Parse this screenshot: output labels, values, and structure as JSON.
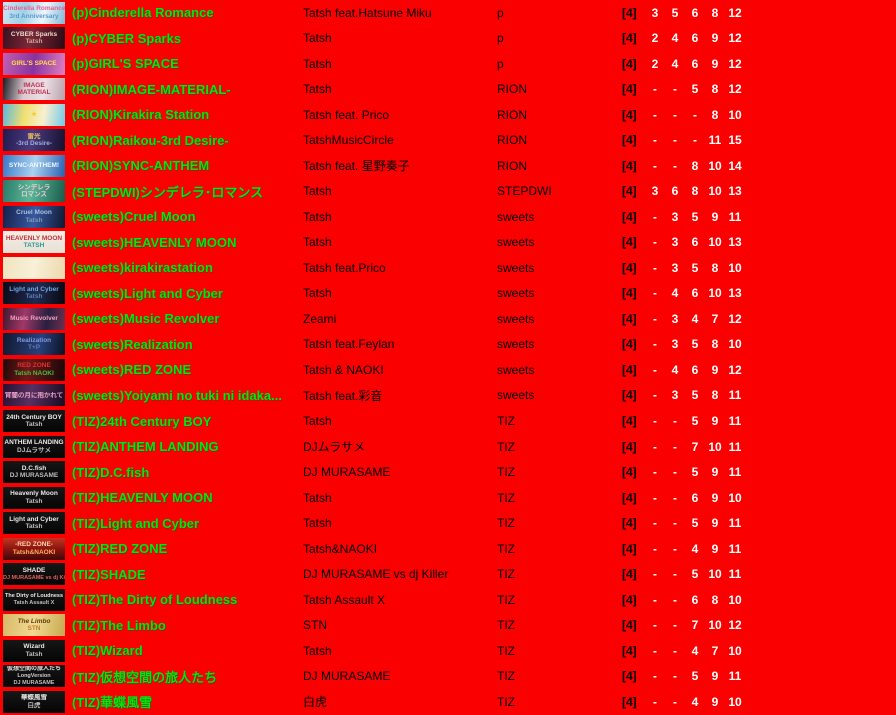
{
  "style": {
    "background": "#fa0000",
    "title_color": "#0de00d",
    "title_shadow": "#0a5a0a",
    "artist_color": "#000000",
    "category_color": "#000000",
    "diff_prefix_color": "#000000",
    "diff_value_color": "#ffffff"
  },
  "rows": [
    {
      "title": "(p)Cinderella Romance",
      "artist": "Tatsh feat.Hatsune Miku",
      "category": "p",
      "diff_prefix": "[4]",
      "difficulties": [
        "3",
        "5",
        "6",
        "8",
        "12"
      ],
      "thumb": {
        "bg": "linear-gradient(105deg,#cfe6f2 0%,#9fd0e8 35%,#eef6fb 65%,#7fb8d8 100%)",
        "lines": [
          {
            "t": "Cinderella Romance",
            "c": "#e0608e"
          },
          {
            "t": "3rd Anniversary",
            "c": "#5a9ac8"
          }
        ]
      }
    },
    {
      "title": "(p)CYBER Sparks",
      "artist": "Tatsh",
      "category": "p",
      "diff_prefix": "[4]",
      "difficulties": [
        "2",
        "4",
        "6",
        "9",
        "12"
      ],
      "thumb": {
        "bg": "linear-gradient(100deg,#3a1020,#7c2838 45%,#2a0a14)",
        "lines": [
          {
            "t": "CYBER Sparks",
            "c": "#e8d8c8"
          },
          {
            "t": "Tatsh",
            "c": "#c8a898"
          }
        ]
      }
    },
    {
      "title": "(p)GIRL'S SPACE",
      "artist": "Tatsh",
      "category": "p",
      "diff_prefix": "[4]",
      "difficulties": [
        "2",
        "4",
        "6",
        "9",
        "12"
      ],
      "thumb": {
        "bg": "linear-gradient(100deg,#c060b0,#8832a2 50%,#e080c0)",
        "lines": [
          {
            "t": "GIRL'S SPACE",
            "c": "#ffe040"
          }
        ]
      }
    },
    {
      "title": "(RION)IMAGE-MATERIAL-",
      "artist": "Tatsh",
      "category": "RION",
      "diff_prefix": "[4]",
      "difficulties": [
        "-",
        "-",
        "5",
        "8",
        "12"
      ],
      "thumb": {
        "bg": "linear-gradient(100deg,#1a1a22 0%,#d8c8d0 35%,#ece0e6 65%,#b8a0aa 100%)",
        "lines": [
          {
            "t": "IMAGE",
            "c": "#c03050"
          },
          {
            "t": "MATERIAL",
            "c": "#c03050"
          }
        ]
      }
    },
    {
      "title": "(RION)Kirakira Station",
      "artist": "Tatsh feat. Prico",
      "category": "RION",
      "diff_prefix": "[4]",
      "difficulties": [
        "-",
        "-",
        "-",
        "8",
        "10"
      ],
      "thumb": {
        "bg": "linear-gradient(100deg,#58b8e0,#f0e070 35%,#f8f0d0 65%,#70c8e8)",
        "lines": [
          {
            "t": "★",
            "c": "#f8c838"
          }
        ]
      }
    },
    {
      "title": "(RION)Raikou-3rd Desire-",
      "artist": "TatshMusicCircle",
      "category": "RION",
      "diff_prefix": "[4]",
      "difficulties": [
        "-",
        "-",
        "-",
        "11",
        "15"
      ],
      "thumb": {
        "bg": "linear-gradient(100deg,#221a4e,#4a3a7e 45%,#16102e)",
        "lines": [
          {
            "t": "雷光",
            "c": "#e8c060"
          },
          {
            "t": "-3rd Desire-",
            "c": "#9ab0e0"
          }
        ]
      }
    },
    {
      "title": "(RION)SYNC-ANTHEM",
      "artist": "Tatsh feat. 星野奏子",
      "category": "RION",
      "diff_prefix": "[4]",
      "difficulties": [
        "-",
        "-",
        "8",
        "10",
        "14"
      ],
      "thumb": {
        "bg": "linear-gradient(100deg,#3878c8,#aad2f0 50%,#2860b0)",
        "lines": [
          {
            "t": "SYNC-ANTHEM!",
            "c": "#f0f8ff"
          }
        ]
      }
    },
    {
      "title": "(STEPDWI)シンデレラ･ロマンス",
      "artist": "Tatsh",
      "category": "STEPDWI",
      "diff_prefix": "[4]",
      "difficulties": [
        "3",
        "6",
        "8",
        "10",
        "13"
      ],
      "thumb": {
        "bg": "linear-gradient(100deg,#2a7a6a,#58b898 45%,#1a5a4a)",
        "lines": [
          {
            "t": "シンデレラ",
            "c": "#f8c8d8"
          },
          {
            "t": "ロマンス",
            "c": "#f8c8d8"
          }
        ]
      }
    },
    {
      "title": "(sweets)Cruel Moon",
      "artist": "Tatsh",
      "category": "sweets",
      "diff_prefix": "[4]",
      "difficulties": [
        "-",
        "3",
        "5",
        "9",
        "11"
      ],
      "thumb": {
        "bg": "linear-gradient(100deg,#14204a,#3858a0 50%,#0e1830)",
        "lines": [
          {
            "t": "Cruel Moon",
            "c": "#aac0dd"
          },
          {
            "t": "Tatsh",
            "c": "#8098b8"
          }
        ]
      }
    },
    {
      "title": "(sweets)HEAVENLY MOON",
      "artist": "Tatsh",
      "category": "sweets",
      "diff_prefix": "[4]",
      "difficulties": [
        "-",
        "3",
        "6",
        "10",
        "13"
      ],
      "thumb": {
        "bg": "linear-gradient(180deg,#f4eee6,#e8e0d4)",
        "lines": [
          {
            "t": "HEAVENLY MOON",
            "c": "#c23240"
          },
          {
            "t": "TATSH",
            "c": "#2a9a96"
          }
        ]
      }
    },
    {
      "title": "(sweets)kirakirastation",
      "artist": "Tatsh feat.Prico",
      "category": "sweets",
      "diff_prefix": "[4]",
      "difficulties": [
        "-",
        "3",
        "5",
        "8",
        "10"
      ],
      "thumb": {
        "bg": "linear-gradient(100deg,#f0e4be,#f8f0d8 50%,#ecd8ac)",
        "lines": [
          {
            "t": "",
            "c": "#ffffff"
          }
        ]
      }
    },
    {
      "title": "(sweets)Light and Cyber",
      "artist": "Tatsh",
      "category": "sweets",
      "diff_prefix": "[4]",
      "difficulties": [
        "-",
        "4",
        "6",
        "10",
        "13"
      ],
      "thumb": {
        "bg": "linear-gradient(100deg,#0a0a18,#222a4e 55%,#06060e)",
        "lines": [
          {
            "t": "Light and Cyber",
            "c": "#68a8e8"
          },
          {
            "t": "Tatsh",
            "c": "#5080b8"
          }
        ]
      }
    },
    {
      "title": "(sweets)Music Revolver",
      "artist": "Zeami",
      "category": "sweets",
      "diff_prefix": "[4]",
      "difficulties": [
        "-",
        "3",
        "4",
        "7",
        "12"
      ],
      "thumb": {
        "bg": "linear-gradient(100deg,#401830,#a03868 35%,#282040 70%,#703050)",
        "lines": [
          {
            "t": "Music Revolver",
            "c": "#f0a0c0"
          }
        ]
      }
    },
    {
      "title": "(sweets)Realization",
      "artist": "Tatsh feat.Feylan",
      "category": "sweets",
      "diff_prefix": "[4]",
      "difficulties": [
        "-",
        "3",
        "5",
        "8",
        "10"
      ],
      "thumb": {
        "bg": "linear-gradient(100deg,#101830,#28407a 60%,#0a1020)",
        "lines": [
          {
            "t": "Realization",
            "c": "#8098e0"
          },
          {
            "t": "T+P",
            "c": "#6078b8"
          }
        ]
      }
    },
    {
      "title": "(sweets)RED ZONE",
      "artist": "Tatsh & NAOKI",
      "category": "sweets",
      "diff_prefix": "[4]",
      "difficulties": [
        "-",
        "4",
        "6",
        "9",
        "12"
      ],
      "thumb": {
        "bg": "linear-gradient(100deg,#220808,#6e1818 40%,#180606)",
        "lines": [
          {
            "t": "RED ZONE",
            "c": "#e83030"
          },
          {
            "t": "Tatsh   NAOKI",
            "c": "#40c040"
          }
        ]
      }
    },
    {
      "title": "(sweets)Yoiyami no tuki ni idaka...",
      "artist": "Tatsh feat.彩音",
      "category": "sweets",
      "diff_prefix": "[4]",
      "difficulties": [
        "-",
        "3",
        "5",
        "8",
        "11"
      ],
      "thumb": {
        "bg": "linear-gradient(100deg,#281030,#583062 45%,#180a20)",
        "lines": [
          {
            "t": "宵闇の月に抱かれて",
            "c": "#e8a0c8"
          }
        ]
      }
    },
    {
      "title": "(TIZ)24th Century BOY",
      "artist": "Tatsh",
      "category": "TIZ",
      "diff_prefix": "[4]",
      "difficulties": [
        "-",
        "-",
        "5",
        "9",
        "11"
      ],
      "thumb": {
        "bg": "linear-gradient(180deg,#161616,#050505)",
        "lines": [
          {
            "t": "24th Century BOY",
            "c": "#e8e8e8"
          },
          {
            "t": "Tatsh",
            "c": "#bdbdbd"
          }
        ]
      }
    },
    {
      "title": "(TIZ)ANTHEM LANDING",
      "artist": "DJムラサメ",
      "category": "TIZ",
      "diff_prefix": "[4]",
      "difficulties": [
        "-",
        "-",
        "7",
        "10",
        "11"
      ],
      "thumb": {
        "bg": "linear-gradient(180deg,#161616,#050505)",
        "lines": [
          {
            "t": "ANTHEM LANDING",
            "c": "#e8e8e8"
          },
          {
            "t": "DJムラサメ",
            "c": "#bdbdbd"
          }
        ]
      }
    },
    {
      "title": "(TIZ)D.C.fish",
      "artist": "DJ MURASAME",
      "category": "TIZ",
      "diff_prefix": "[4]",
      "difficulties": [
        "-",
        "-",
        "5",
        "9",
        "11"
      ],
      "thumb": {
        "bg": "linear-gradient(180deg,#161616,#050505)",
        "lines": [
          {
            "t": "D.C.fish",
            "c": "#e8e8e8"
          },
          {
            "t": "DJ MURASAME",
            "c": "#bdbdbd"
          }
        ]
      }
    },
    {
      "title": "(TIZ)HEAVENLY MOON",
      "artist": "Tatsh",
      "category": "TIZ",
      "diff_prefix": "[4]",
      "difficulties": [
        "-",
        "-",
        "6",
        "9",
        "10"
      ],
      "thumb": {
        "bg": "linear-gradient(180deg,#161616,#050505)",
        "lines": [
          {
            "t": "Heavenly Moon",
            "c": "#e8e8e8"
          },
          {
            "t": "Tatsh",
            "c": "#bdbdbd"
          }
        ]
      }
    },
    {
      "title": "(TIZ)Light and Cyber",
      "artist": "Tatsh",
      "category": "TIZ",
      "diff_prefix": "[4]",
      "difficulties": [
        "-",
        "-",
        "5",
        "9",
        "11"
      ],
      "thumb": {
        "bg": "linear-gradient(180deg,#161616,#050505)",
        "lines": [
          {
            "t": "Light and Cyber",
            "c": "#e8e8e8"
          },
          {
            "t": "Tatsh",
            "c": "#bdbdbd"
          }
        ]
      }
    },
    {
      "title": "(TIZ)RED ZONE",
      "artist": "Tatsh&NAOKI",
      "category": "TIZ",
      "diff_prefix": "[4]",
      "difficulties": [
        "-",
        "-",
        "4",
        "9",
        "11"
      ],
      "thumb": {
        "bg": "linear-gradient(180deg,#c23420,#8a1410 50%,#400808)",
        "lines": [
          {
            "t": "-RED ZONE-",
            "c": "#ffd2b0"
          },
          {
            "t": "Tatsh&NAOKI",
            "c": "#ffb060"
          }
        ]
      }
    },
    {
      "title": "(TIZ)SHADE",
      "artist": "DJ MURASAME vs dj Killer",
      "category": "TIZ",
      "diff_prefix": "[4]",
      "difficulties": [
        "-",
        "-",
        "5",
        "10",
        "11"
      ],
      "thumb": {
        "bg": "linear-gradient(180deg,#161616,#050505)",
        "lines": [
          {
            "t": "SHADE",
            "c": "#e8e8e8"
          },
          {
            "t": "DJ MURASAME vs dj Killer",
            "c": "#e06060",
            "s": 5.5
          }
        ]
      }
    },
    {
      "title": "(TIZ)The Dirty of Loudness",
      "artist": "Tatsh Assault X",
      "category": "TIZ",
      "diff_prefix": "[4]",
      "difficulties": [
        "-",
        "-",
        "6",
        "8",
        "10"
      ],
      "thumb": {
        "bg": "linear-gradient(180deg,#161616,#050505)",
        "lines": [
          {
            "t": "The Dirty of Loudness",
            "c": "#e8e8e8",
            "s": 5.5
          },
          {
            "t": "Tatsh Assault X",
            "c": "#bdbdbd",
            "s": 5.5
          }
        ]
      }
    },
    {
      "title": "(TIZ)The Limbo",
      "artist": "STN",
      "category": "TIZ",
      "diff_prefix": "[4]",
      "difficulties": [
        "-",
        "-",
        "7",
        "10",
        "12"
      ],
      "thumb": {
        "bg": "linear-gradient(100deg,#d8b868,#f0da92 50%,#c8a850)",
        "lines": [
          {
            "t": "The Limbo",
            "c": "#5e3e10",
            "i": true
          },
          {
            "t": "STN",
            "c": "#c87828"
          }
        ]
      }
    },
    {
      "title": "(TIZ)Wizard",
      "artist": "Tatsh",
      "category": "TIZ",
      "diff_prefix": "[4]",
      "difficulties": [
        "-",
        "-",
        "4",
        "7",
        "10"
      ],
      "thumb": {
        "bg": "linear-gradient(180deg,#161616,#050505)",
        "lines": [
          {
            "t": "Wizard",
            "c": "#e8e8e8"
          },
          {
            "t": "Tatsh",
            "c": "#bdbdbd"
          }
        ]
      }
    },
    {
      "title": "(TIZ)仮想空間の旅人たち",
      "artist": "DJ MURASAME",
      "category": "TIZ",
      "diff_prefix": "[4]",
      "difficulties": [
        "-",
        "-",
        "5",
        "9",
        "11"
      ],
      "thumb": {
        "bg": "linear-gradient(180deg,#161616,#050505)",
        "lines": [
          {
            "t": "仮想空間の旅人たち",
            "c": "#e8e8e8",
            "s": 6
          },
          {
            "t": "LongVersion",
            "c": "#cccccc",
            "s": 5.5
          },
          {
            "t": "DJ MURASAME",
            "c": "#bdbdbd",
            "s": 5.5
          }
        ]
      }
    },
    {
      "title": "(TIZ)華蝶風雪",
      "artist": "白虎",
      "category": "TIZ",
      "diff_prefix": "[4]",
      "difficulties": [
        "-",
        "-",
        "4",
        "9",
        "10"
      ],
      "thumb": {
        "bg": "linear-gradient(180deg,#161616,#050505)",
        "lines": [
          {
            "t": "華蝶風雪",
            "c": "#e8e8e8"
          },
          {
            "t": "白虎",
            "c": "#bdbdbd"
          }
        ]
      }
    }
  ]
}
